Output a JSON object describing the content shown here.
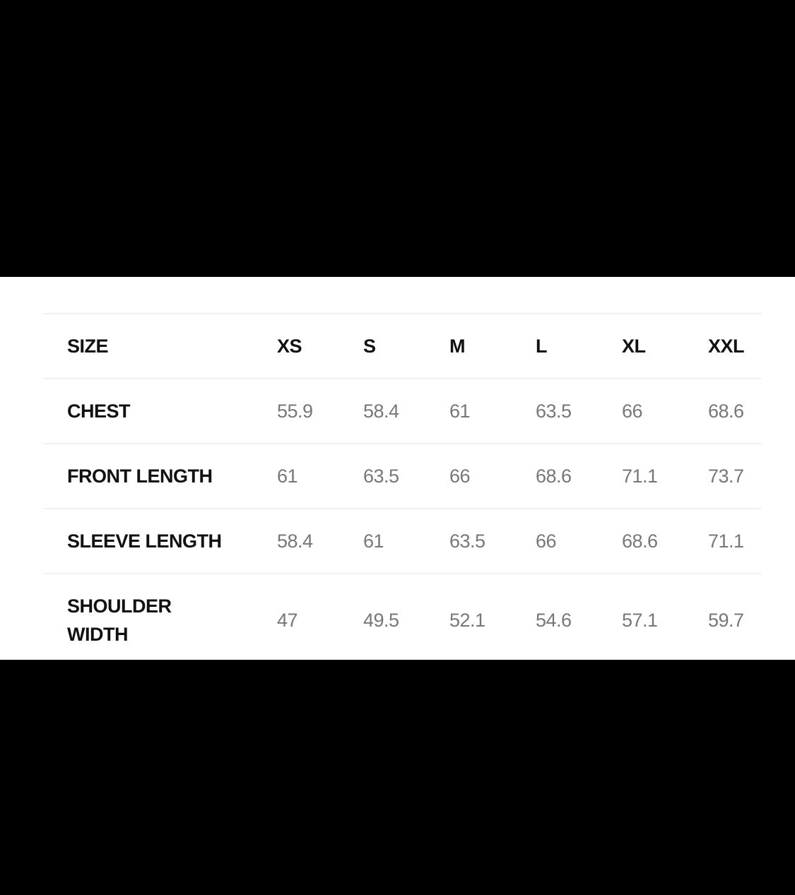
{
  "size_chart": {
    "header": {
      "label": "SIZE",
      "sizes": [
        "XS",
        "S",
        "M",
        "L",
        "XL",
        "XXL"
      ]
    },
    "rows": [
      {
        "label": "CHEST",
        "values": [
          "55.9",
          "58.4",
          "61",
          "63.5",
          "66",
          "68.6"
        ]
      },
      {
        "label": "FRONT LENGTH",
        "values": [
          "61",
          "63.5",
          "66",
          "68.6",
          "71.1",
          "73.7"
        ]
      },
      {
        "label": "SLEEVE LENGTH",
        "values": [
          "58.4",
          "61",
          "63.5",
          "66",
          "68.6",
          "71.1"
        ]
      },
      {
        "label": "SHOULDER WIDTH",
        "values": [
          "47",
          "49.5",
          "52.1",
          "54.6",
          "57.1",
          "59.7"
        ]
      }
    ]
  }
}
